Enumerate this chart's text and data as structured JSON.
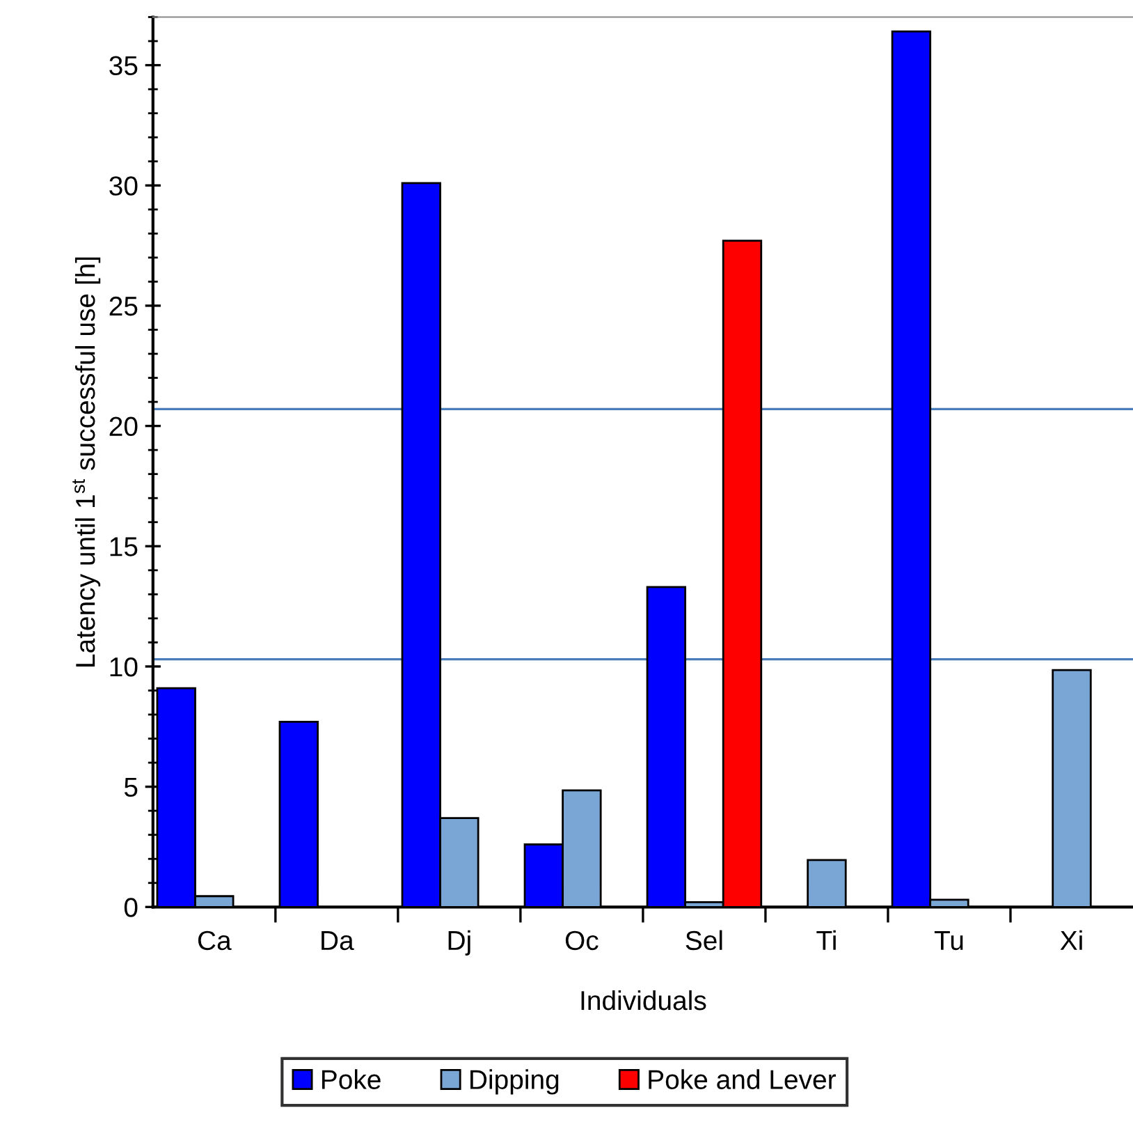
{
  "chart_data": {
    "type": "bar",
    "xlabel": "Individuals",
    "ylabel": "Latency until 1$^{st}$ successful use [h]",
    "categories": [
      "Ca",
      "Da",
      "Dj",
      "Oc",
      "Sel",
      "Ti",
      "Tu",
      "Xi"
    ],
    "series": [
      {
        "name": "Poke",
        "color": "#0000ff",
        "values": [
          9.1,
          7.7,
          30.1,
          2.6,
          13.3,
          null,
          36.4,
          null
        ]
      },
      {
        "name": "Dipping",
        "color": "#7aa6d6",
        "values": [
          0.45,
          null,
          3.7,
          4.85,
          0.2,
          1.95,
          0.3,
          9.85
        ]
      },
      {
        "name": "Poke and Lever",
        "color": "#ff0000",
        "values": [
          null,
          null,
          null,
          null,
          27.7,
          null,
          null,
          null
        ]
      }
    ],
    "ylim": [
      0,
      37
    ],
    "yticks": [
      0,
      5,
      10,
      15,
      20,
      25,
      30,
      35
    ],
    "ref_lines": [
      {
        "axis": "y",
        "value": 20.7,
        "color": "#4a7ebb"
      },
      {
        "axis": "y",
        "value": 10.3,
        "color": "#4a7ebb"
      }
    ],
    "grid": false,
    "legend": "bottom"
  }
}
